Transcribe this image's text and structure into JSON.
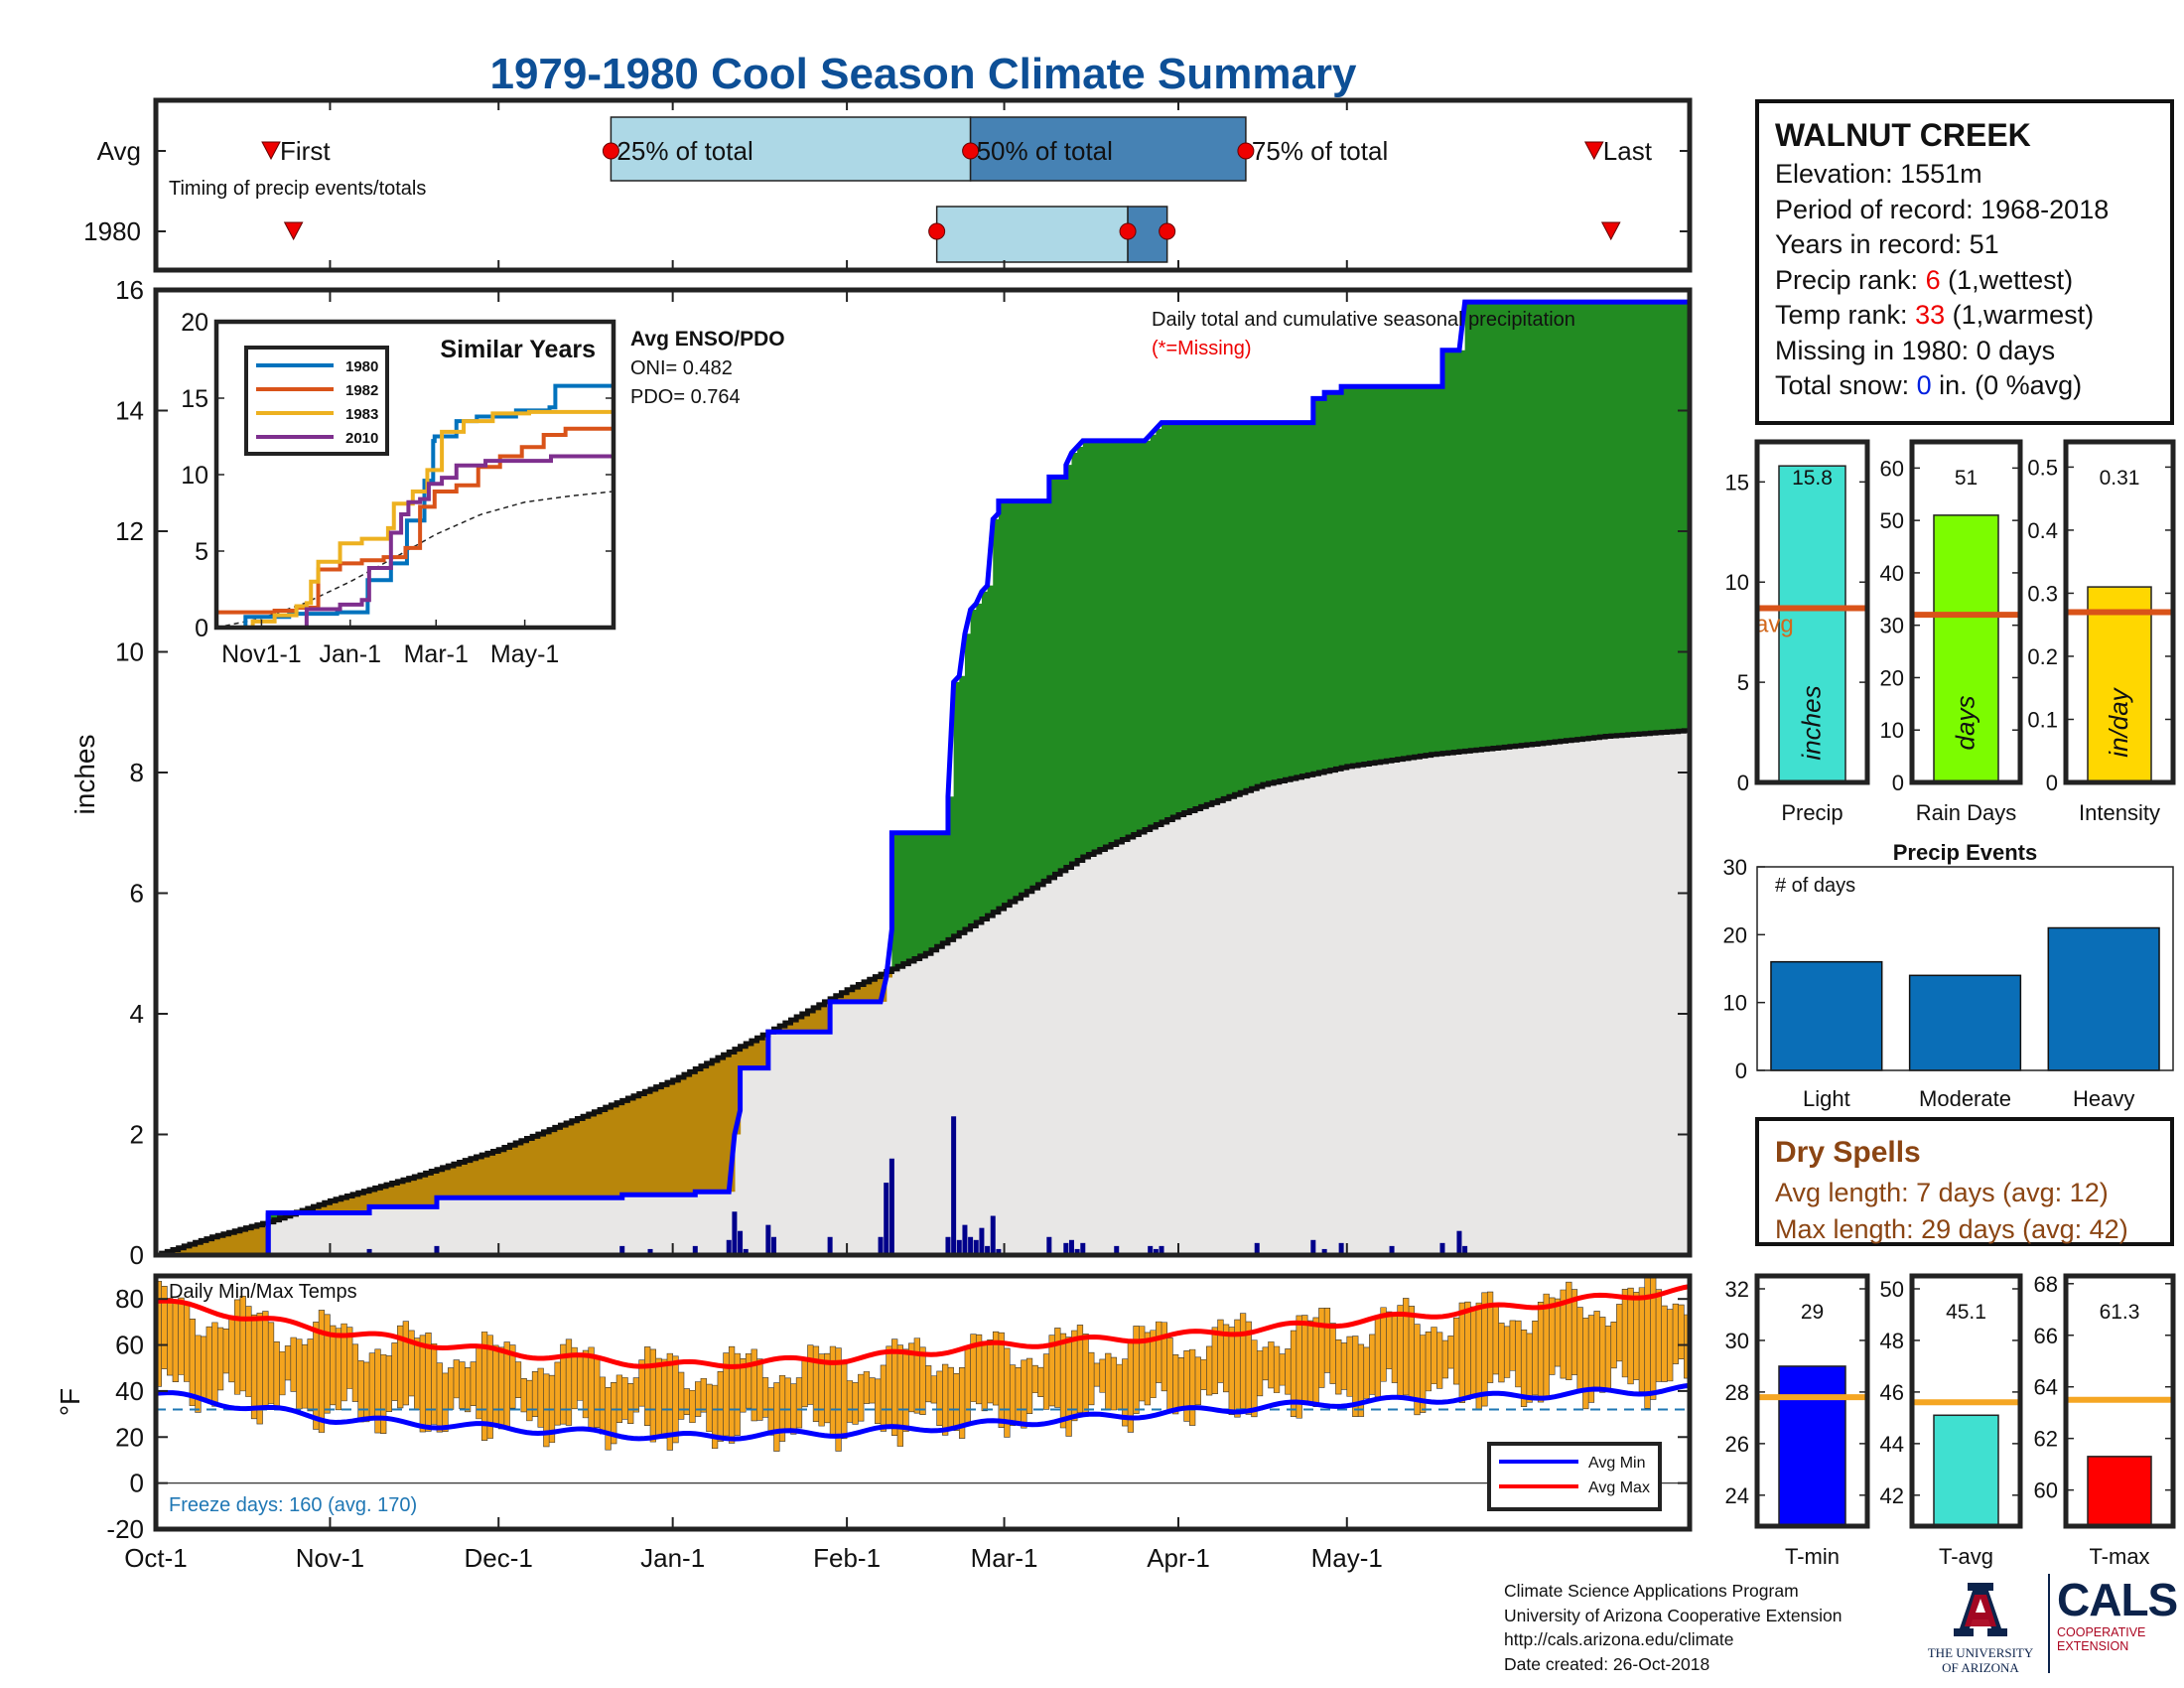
{
  "page_title": "1979-1980 Cool Season Climate Summary",
  "station": {
    "name": "WALNUT CREEK",
    "elevation_label": "Elevation: ",
    "elevation": "1551m",
    "period_label": "Period of record: ",
    "period": "1968-2018",
    "years_label": "Years in record: ",
    "years": "51",
    "precip_rank_label": "Precip rank: ",
    "precip_rank": "6",
    "precip_rank_note": " (1,wettest)",
    "temp_rank_label": "Temp rank: ",
    "temp_rank": "33",
    "temp_rank_note": " (1,warmest)",
    "missing_label": "Missing in 1980: ",
    "missing": "0 days",
    "snow_label": "Total snow: ",
    "snow": "0",
    "snow_note": " in. (0 %avg)"
  },
  "dry_spells": {
    "title": "Dry Spells",
    "avg_length": "Avg length: 7 days (avg: 12)",
    "max_length": "Max length: 29 days (avg: 42)"
  },
  "credits": {
    "line1": "Climate Science Applications Program",
    "line2": "University of Arizona Cooperative Extension",
    "line3": "http://cals.arizona.edu/climate",
    "line4": "Date created: 26-Oct-2018"
  },
  "logos": {
    "ua_line1": "THE UNIVERSITY",
    "ua_line2": "OF ARIZONA",
    "cals": "CALS",
    "cals_line1": "COOPERATIVE",
    "cals_line2": "EXTENSION"
  },
  "colors": {
    "title": "#0d4f96",
    "cumulative_1980_line": "#0000ff",
    "above_avg_fill": "#228b22",
    "below_avg_fill": "#b8860b",
    "avg_fill": "#e8e7e6",
    "daily_bar": "#00008b",
    "temp_bar": "#f4a41e",
    "avg_min_line": "#0000ff",
    "avg_max_line": "#ff0000",
    "events_bar": "#0a6eb7"
  },
  "chart_data": [
    {
      "id": "timing",
      "type": "timeline",
      "rows": [
        "Avg",
        "1980"
      ],
      "note": "Timing of precip events/totals",
      "labels": {
        "first": "First",
        "q25": "25% of total",
        "q50": "50% of total",
        "q75": "75% of total",
        "last": "Last"
      },
      "avg": {
        "first": 20.5,
        "q25": 81,
        "q50": 145,
        "q75": 194,
        "last": 256
      },
      "season_1980": {
        "first": 24.5,
        "q25": 139,
        "q50": 173,
        "q75": 180,
        "last": 259
      },
      "xlim": [
        0,
        273
      ]
    },
    {
      "id": "cumulative_precip",
      "type": "area",
      "ylabel": "inches",
      "ylim": [
        0,
        16
      ],
      "yticks": [
        0,
        2,
        4,
        6,
        8,
        10,
        12,
        14,
        16
      ],
      "xlim": [
        0,
        273
      ],
      "xtick_labels": [
        "Oct-1",
        "Nov-1",
        "Dec-1",
        "Jan-1",
        "Feb-1",
        "Mar-1",
        "Apr-1",
        "May-1"
      ],
      "xtick_days": [
        0,
        31,
        61,
        92,
        123,
        151,
        182,
        212
      ],
      "annotation": "Daily total and cumulative seasonal precipitation",
      "missing_note": "(*=Missing)",
      "enso_title": "Avg ENSO/PDO",
      "oni": "ONI= 0.482",
      "pdo": "PDO= 0.764",
      "cumulative_1980": [
        [
          0,
          0
        ],
        [
          20,
          0
        ],
        [
          20,
          0.7
        ],
        [
          38,
          0.7
        ],
        [
          38,
          0.8
        ],
        [
          50,
          0.8
        ],
        [
          50,
          0.95
        ],
        [
          83,
          0.95
        ],
        [
          83,
          1.0
        ],
        [
          96,
          1.0
        ],
        [
          96,
          1.05
        ],
        [
          102,
          1.05
        ],
        [
          103,
          2.0
        ],
        [
          104,
          2.4
        ],
        [
          104,
          3.1
        ],
        [
          109,
          3.1
        ],
        [
          109,
          3.7
        ],
        [
          120,
          3.7
        ],
        [
          120,
          4.2
        ],
        [
          129,
          4.2
        ],
        [
          130,
          4.6
        ],
        [
          131,
          5.4
        ],
        [
          131,
          7.0
        ],
        [
          141,
          7.0
        ],
        [
          141,
          7.6
        ],
        [
          142,
          9.5
        ],
        [
          143,
          9.6
        ],
        [
          144,
          10.3
        ],
        [
          145,
          10.7
        ],
        [
          146,
          10.8
        ],
        [
          147,
          11.0
        ],
        [
          148,
          11.1
        ],
        [
          149,
          12.2
        ],
        [
          150,
          12.3
        ],
        [
          150,
          12.5
        ],
        [
          159,
          12.5
        ],
        [
          159,
          12.9
        ],
        [
          162,
          12.9
        ],
        [
          162,
          13.1
        ],
        [
          163,
          13.3
        ],
        [
          164,
          13.4
        ],
        [
          165,
          13.5
        ],
        [
          176,
          13.5
        ],
        [
          177,
          13.6
        ],
        [
          178,
          13.7
        ],
        [
          179,
          13.8
        ],
        [
          206,
          13.8
        ],
        [
          206,
          14.2
        ],
        [
          208,
          14.2
        ],
        [
          208,
          14.3
        ],
        [
          211,
          14.3
        ],
        [
          211,
          14.4
        ],
        [
          229,
          14.4
        ],
        [
          229,
          15.0
        ],
        [
          232,
          15.0
        ],
        [
          233,
          15.8
        ],
        [
          273,
          15.8
        ]
      ],
      "cumulative_avg": [
        [
          0,
          0.0
        ],
        [
          10,
          0.3
        ],
        [
          20,
          0.55
        ],
        [
          31,
          0.9
        ],
        [
          46,
          1.3
        ],
        [
          61,
          1.75
        ],
        [
          76,
          2.3
        ],
        [
          92,
          2.9
        ],
        [
          107,
          3.6
        ],
        [
          123,
          4.4
        ],
        [
          130,
          4.7
        ],
        [
          137,
          5.0
        ],
        [
          151,
          5.8
        ],
        [
          165,
          6.6
        ],
        [
          182,
          7.3
        ],
        [
          197,
          7.8
        ],
        [
          212,
          8.1
        ],
        [
          227,
          8.3
        ],
        [
          243,
          8.45
        ],
        [
          258,
          8.6
        ],
        [
          273,
          8.7
        ]
      ],
      "daily_1980": [
        [
          20,
          0.7
        ],
        [
          38,
          0.1
        ],
        [
          50,
          0.15
        ],
        [
          83,
          0.15
        ],
        [
          88,
          0.1
        ],
        [
          96,
          0.15
        ],
        [
          102,
          0.25
        ],
        [
          103,
          0.72
        ],
        [
          104,
          0.4
        ],
        [
          105,
          0.1
        ],
        [
          109,
          0.5
        ],
        [
          110,
          0.3
        ],
        [
          120,
          0.3
        ],
        [
          129,
          0.3
        ],
        [
          130,
          1.2
        ],
        [
          131,
          1.6
        ],
        [
          141,
          0.3
        ],
        [
          142,
          2.3
        ],
        [
          143,
          0.25
        ],
        [
          144,
          0.5
        ],
        [
          145,
          0.3
        ],
        [
          146,
          0.25
        ],
        [
          147,
          0.45
        ],
        [
          148,
          0.15
        ],
        [
          149,
          0.65
        ],
        [
          150,
          0.1
        ],
        [
          159,
          0.3
        ],
        [
          162,
          0.2
        ],
        [
          163,
          0.25
        ],
        [
          164,
          0.1
        ],
        [
          165,
          0.2
        ],
        [
          171,
          0.15
        ],
        [
          177,
          0.15
        ],
        [
          178,
          0.1
        ],
        [
          179,
          0.15
        ],
        [
          196,
          0.2
        ],
        [
          206,
          0.25
        ],
        [
          208,
          0.1
        ],
        [
          211,
          0.2
        ],
        [
          220,
          0.15
        ],
        [
          229,
          0.2
        ],
        [
          232,
          0.4
        ],
        [
          233,
          0.15
        ]
      ]
    },
    {
      "id": "similar_years",
      "type": "line",
      "title": "Similar Years",
      "ylim": [
        0,
        20
      ],
      "yticks": [
        0,
        5,
        10,
        15,
        20
      ],
      "xtick_labels": [
        "Nov1-1",
        "Jan-1",
        "Mar-1",
        "May-1"
      ],
      "xtick_days": [
        31,
        92,
        151,
        212
      ],
      "xlim": [
        0,
        273
      ],
      "series": [
        {
          "name": "1980",
          "color": "#0072bd",
          "points": [
            [
              0,
              0
            ],
            [
              20,
              0
            ],
            [
              20,
              0.7
            ],
            [
              50,
              0.9
            ],
            [
              83,
              1.0
            ],
            [
              102,
              1.0
            ],
            [
              104,
              3.1
            ],
            [
              120,
              4.2
            ],
            [
              131,
              7.0
            ],
            [
              141,
              7.0
            ],
            [
              143,
              9.6
            ],
            [
              149,
              12.2
            ],
            [
              150,
              12.5
            ],
            [
              165,
              13.5
            ],
            [
              179,
              13.8
            ],
            [
              206,
              14.2
            ],
            [
              229,
              14.4
            ],
            [
              233,
              15.8
            ],
            [
              273,
              15.8
            ]
          ]
        },
        {
          "name": "1982",
          "color": "#d95319",
          "points": [
            [
              0,
              1.0
            ],
            [
              40,
              1.1
            ],
            [
              55,
              1.3
            ],
            [
              65,
              1.3
            ],
            [
              70,
              3.8
            ],
            [
              85,
              4.2
            ],
            [
              100,
              4.4
            ],
            [
              115,
              4.6
            ],
            [
              130,
              5.2
            ],
            [
              140,
              7.9
            ],
            [
              150,
              8.9
            ],
            [
              165,
              9.3
            ],
            [
              180,
              10.5
            ],
            [
              195,
              11.2
            ],
            [
              210,
              11.8
            ],
            [
              225,
              12.6
            ],
            [
              240,
              13.0
            ],
            [
              273,
              13.2
            ]
          ]
        },
        {
          "name": "1983",
          "color": "#edb120",
          "points": [
            [
              0,
              0
            ],
            [
              20,
              0
            ],
            [
              25,
              0.4
            ],
            [
              40,
              0.8
            ],
            [
              55,
              1.4
            ],
            [
              62,
              1.6
            ],
            [
              65,
              3.0
            ],
            [
              70,
              4.3
            ],
            [
              85,
              5.5
            ],
            [
              100,
              5.8
            ],
            [
              118,
              6.5
            ],
            [
              122,
              8.1
            ],
            [
              135,
              8.9
            ],
            [
              145,
              10.3
            ],
            [
              155,
              12.8
            ],
            [
              170,
              13.5
            ],
            [
              190,
              14.0
            ],
            [
              215,
              14.1
            ],
            [
              273,
              14.3
            ]
          ]
        },
        {
          "name": "2010",
          "color": "#7e2f8e",
          "points": [
            [
              0,
              0
            ],
            [
              60,
              0
            ],
            [
              62,
              1.2
            ],
            [
              85,
              1.5
            ],
            [
              100,
              1.8
            ],
            [
              105,
              3.9
            ],
            [
              120,
              6.2
            ],
            [
              127,
              7.4
            ],
            [
              132,
              8.2
            ],
            [
              140,
              8.4
            ],
            [
              146,
              9.4
            ],
            [
              155,
              9.8
            ],
            [
              165,
              10.6
            ],
            [
              185,
              10.9
            ],
            [
              200,
              10.9
            ],
            [
              230,
              11.2
            ],
            [
              273,
              11.3
            ]
          ]
        }
      ],
      "avg_points": [
        [
          0,
          0
        ],
        [
          31,
          0.6
        ],
        [
          61,
          1.6
        ],
        [
          92,
          3.0
        ],
        [
          123,
          4.6
        ],
        [
          151,
          6.1
        ],
        [
          182,
          7.4
        ],
        [
          212,
          8.2
        ],
        [
          243,
          8.6
        ],
        [
          273,
          8.9
        ]
      ]
    },
    {
      "id": "daily_temps",
      "type": "bar",
      "title": "Daily Min/Max Temps",
      "ylabel": "°F",
      "ylim": [
        -20,
        90
      ],
      "yticks": [
        -20,
        0,
        20,
        40,
        60,
        80
      ],
      "freeze_line": 32,
      "freeze_days": "Freeze days: 160 (avg. 170)",
      "legend": [
        "Avg Min",
        "Avg Max"
      ],
      "avg_min": [
        [
          0,
          39
        ],
        [
          31,
          28
        ],
        [
          61,
          24
        ],
        [
          92,
          20
        ],
        [
          123,
          22
        ],
        [
          151,
          26
        ],
        [
          182,
          31
        ],
        [
          212,
          35
        ],
        [
          243,
          38
        ],
        [
          273,
          41
        ]
      ],
      "avg_max": [
        [
          0,
          79
        ],
        [
          31,
          66
        ],
        [
          61,
          57
        ],
        [
          92,
          51
        ],
        [
          123,
          54
        ],
        [
          151,
          60
        ],
        [
          182,
          64
        ],
        [
          212,
          70
        ],
        [
          243,
          77
        ],
        [
          273,
          84
        ]
      ]
    },
    {
      "id": "precip_total",
      "type": "bar",
      "xlabel": "Precip",
      "category": "inches",
      "value": 15.8,
      "value_label": "15.8",
      "avg": 8.7,
      "avg_label": "avg",
      "ylim": [
        0,
        17
      ],
      "yticks": [
        0,
        5,
        10,
        15
      ],
      "color": "#40e0d0"
    },
    {
      "id": "rain_days",
      "type": "bar",
      "xlabel": "Rain Days",
      "category": "days",
      "value": 51,
      "value_label": "51",
      "avg": 32,
      "ylim": [
        0,
        65
      ],
      "yticks": [
        0,
        10,
        20,
        30,
        40,
        50,
        60
      ],
      "color": "#7cfc00"
    },
    {
      "id": "intensity",
      "type": "bar",
      "xlabel": "Intensity",
      "category": "in/day",
      "value": 0.31,
      "value_label": "0.31",
      "avg": 0.27,
      "ylim": [
        0,
        0.54
      ],
      "yticks": [
        0,
        0.1,
        0.2,
        0.3,
        0.4,
        0.5
      ],
      "color": "#ffd700"
    },
    {
      "id": "precip_events",
      "type": "bar",
      "title": "Precip Events",
      "ylabel_note": "# of days",
      "categories": [
        "Light",
        "Moderate",
        "Heavy"
      ],
      "values": [
        16,
        14,
        21
      ],
      "ylim": [
        0,
        30
      ],
      "yticks": [
        0,
        10,
        20,
        30
      ]
    },
    {
      "id": "tmin",
      "type": "bar",
      "xlabel": "T-min",
      "value": 29,
      "value_label": "29",
      "avg": 27.8,
      "ylim": [
        22.8,
        32.5
      ],
      "yticks": [
        24,
        26,
        28,
        30,
        32
      ],
      "color": "#0000ff"
    },
    {
      "id": "tavg",
      "type": "bar",
      "xlabel": "T-avg",
      "value": 45.1,
      "value_label": "45.1",
      "avg": 45.6,
      "ylim": [
        40.8,
        50.5
      ],
      "yticks": [
        42,
        44,
        46,
        48,
        50
      ],
      "color": "#40e0d0"
    },
    {
      "id": "tmax",
      "type": "bar",
      "xlabel": "T-max",
      "value": 61.3,
      "value_label": "61.3",
      "avg": 63.5,
      "ylim": [
        58.6,
        68.3
      ],
      "yticks": [
        60,
        62,
        64,
        66,
        68
      ],
      "color": "#ff0000"
    }
  ]
}
